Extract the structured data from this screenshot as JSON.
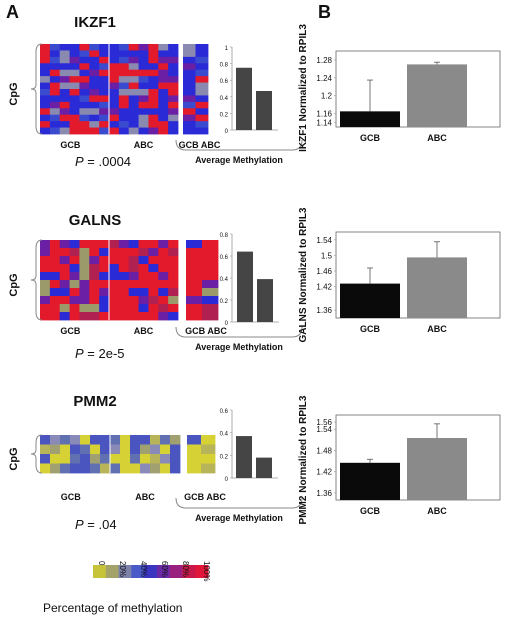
{
  "panel_a_label": "A",
  "panel_b_label": "B",
  "group_labels": [
    "GCB",
    "ABC"
  ],
  "cpg_label": "CpG",
  "avg_caption": "Average Methylation",
  "avg_group_label": "GCB ABC",
  "p_prefix": "P",
  "legend": {
    "title": "Percentage of methylation",
    "ticks": [
      "0",
      "20%",
      "40%",
      "60%",
      "80%",
      "100%"
    ],
    "colors": [
      "#c8c43a",
      "#a3a36a",
      "#7d82a8",
      "#4a5ac8",
      "#3a36c0",
      "#6a2aa6",
      "#9a2080",
      "#c81a4a",
      "#e0163a"
    ]
  },
  "colors": {
    "avg_bar": "#454545",
    "gcb_bar": "#0a0a0a",
    "abc_bar": "#8a8a8a",
    "yellow": "#d6d235",
    "red": "#e21a2c",
    "blue": "#2a2ad6",
    "purple": "#6a1fa4"
  },
  "genes": [
    {
      "name": "IKZF1",
      "p_value": "= .0004",
      "heatmap_style": "blue",
      "b_ylabel": "IKZF1 Normalized to RPIL3"
    },
    {
      "name": "GALNS",
      "p_value": "= 2e-5",
      "heatmap_style": "red",
      "b_ylabel": "GALNS    Normalized to RPIL3"
    },
    {
      "name": "PMM2",
      "p_value": "= .04",
      "heatmap_style": "yellow",
      "b_ylabel": "PMM2 Normalized to RPIL3"
    }
  ],
  "chart_data": [
    {
      "type": "bar",
      "panel": "A",
      "gene": "IKZF1",
      "categories": [
        "GCB",
        "ABC"
      ],
      "values": [
        0.75,
        0.47
      ],
      "yticks": [
        "0",
        "0.2",
        "0.4",
        "0.6",
        "0.8",
        "1"
      ],
      "ylim": [
        0,
        1
      ]
    },
    {
      "type": "bar",
      "panel": "B",
      "gene": "IKZF1",
      "categories": [
        "GCB",
        "ABC"
      ],
      "values": [
        1.165,
        1.27
      ],
      "errors": [
        0.07,
        0.005
      ],
      "yticks": [
        "1.14",
        "1.16",
        "1.2",
        "1.24",
        "1.28"
      ],
      "ylim": [
        1.13,
        1.3
      ]
    },
    {
      "type": "bar",
      "panel": "A",
      "gene": "GALNS",
      "categories": [
        "GCB",
        "ABC"
      ],
      "values": [
        0.64,
        0.39
      ],
      "yticks": [
        "0",
        "0.2",
        "0.4",
        "0.6",
        "0.8"
      ],
      "ylim": [
        0,
        0.8
      ]
    },
    {
      "type": "bar",
      "panel": "B",
      "gene": "GALNS",
      "categories": [
        "GCB",
        "ABC"
      ],
      "values": [
        1.428,
        1.495
      ],
      "errors": [
        0.04,
        0.04
      ],
      "yticks": [
        "1.36",
        "1.42",
        "1.46",
        "1.5",
        "1.54"
      ],
      "ylim": [
        1.34,
        1.56
      ]
    },
    {
      "type": "bar",
      "panel": "A",
      "gene": "PMM2",
      "categories": [
        "GCB",
        "ABC"
      ],
      "values": [
        0.37,
        0.18
      ],
      "yticks": [
        "0",
        "0.2",
        "0.4",
        "0.6"
      ],
      "ylim": [
        0,
        0.6
      ]
    },
    {
      "type": "bar",
      "panel": "B",
      "gene": "PMM2",
      "categories": [
        "GCB",
        "ABC"
      ],
      "values": [
        1.445,
        1.515
      ],
      "errors": [
        0.01,
        0.04
      ],
      "yticks": [
        "1.36",
        "1.42",
        "1.48",
        "1.54",
        "1.56"
      ],
      "ylim": [
        1.34,
        1.58
      ]
    }
  ]
}
